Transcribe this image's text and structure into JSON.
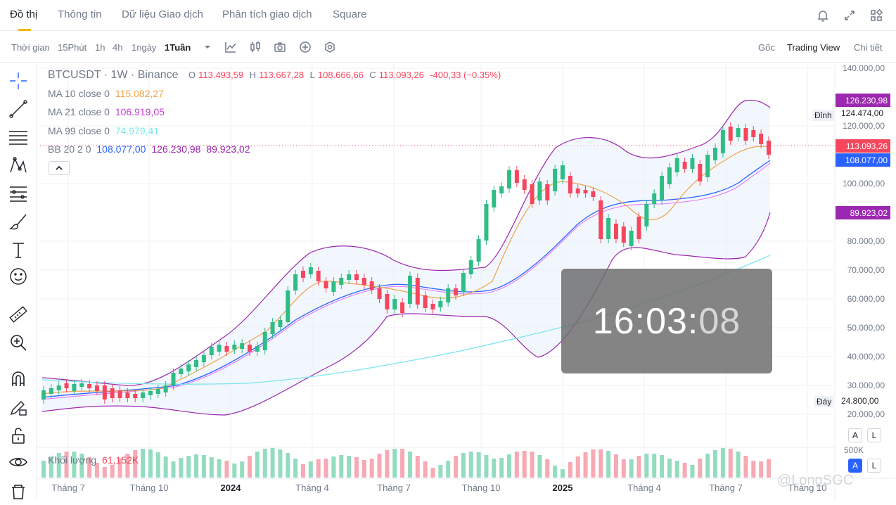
{
  "nav": {
    "tabs": [
      "Đồ thị",
      "Thông tin",
      "Dữ liệu Giao dịch",
      "Phân tích giao dịch",
      "Square"
    ]
  },
  "toolbar": {
    "time_label": "Thời gian",
    "intervals": [
      "15Phút",
      "1h",
      "4h",
      "1ngày",
      "1Tuần"
    ],
    "active_interval": "1Tuần",
    "views": [
      "Gốc",
      "Trading View",
      "Chi tiết"
    ],
    "active_view": "Trading View"
  },
  "symbol": {
    "title": "BTCUSDT · 1W · Binance",
    "o_label": "O",
    "o": "113.493,59",
    "h_label": "H",
    "h": "113.667,28",
    "l_label": "L",
    "l": "108.666,66",
    "c_label": "C",
    "c": "113.093,26",
    "change": "-400,33 (−0.35%)"
  },
  "indicators": {
    "ma10_label": "MA 10 close 0",
    "ma10": "115.082,27",
    "ma21_label": "MA 21 close 0",
    "ma21": "106.919,05",
    "ma99_label": "MA 99 close 0",
    "ma99": "74.979,41",
    "bb_label": "BB 20 2 0",
    "bb_basis": "108.077,00",
    "bb_upper": "126.230,98",
    "bb_lower": "89.923,02"
  },
  "price_axis": {
    "ticks": [
      "140.000,00",
      "120.000,00",
      "100.000,00",
      "80.000,00",
      "70.000,00",
      "60.000,00",
      "50.000,00",
      "40.000,00",
      "30.000,00",
      "20.000,00"
    ],
    "upper_band": "126.230,98",
    "high_label": "Đỉnh",
    "high": "124.474,00",
    "last_price": "113.093,26",
    "basis": "108.077,00",
    "lower_band": "89.923,02",
    "low_label": "Đáy",
    "low": "24.800,00",
    "vol_tick": "500K"
  },
  "volume": {
    "label": "Khối lượng",
    "value": "61,152K"
  },
  "time_axis": {
    "labels": [
      "Tháng 7",
      "Tháng 10",
      "2024",
      "Tháng 4",
      "Tháng 7",
      "Tháng 10",
      "2025",
      "Tháng 4",
      "Tháng 7",
      "Tháng 10"
    ]
  },
  "timer": {
    "hm": "16:03:",
    "sec": "08"
  },
  "axis_buttons": {
    "auto": "A",
    "log": "L"
  },
  "watermark": "@LongSGC",
  "colors": {
    "up": "#2ebd85",
    "down": "#f6465d",
    "ma10": "#f0a44a",
    "ma21": "#3c6eeb",
    "ma99": "#7de6f0",
    "bb": "#9c27b0",
    "basis": "#2962ff"
  }
}
